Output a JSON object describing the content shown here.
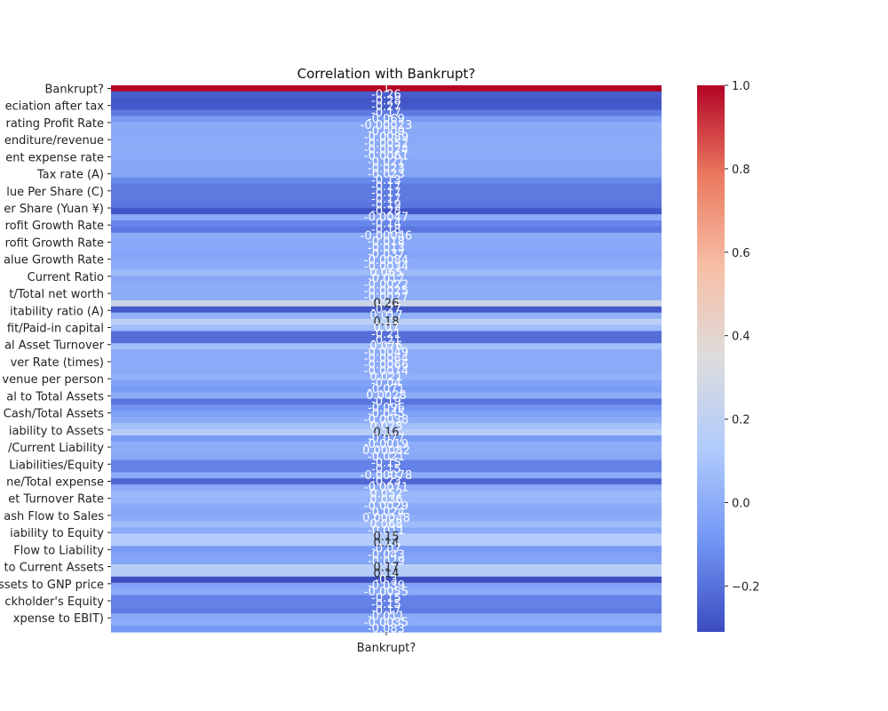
{
  "chart_data": {
    "type": "heatmap",
    "title": "Correlation with Bankrupt?",
    "x_categories": [
      "Bankrupt?"
    ],
    "y_tick_labels": [
      "Bankrupt?",
      "eciation after tax",
      "rating Profit Rate",
      "enditure/revenue",
      "ent expense rate",
      "Tax rate (A)",
      "lue Per Share (C)",
      "er Share (Yuan ¥)",
      "rofit Growth Rate",
      "rofit Growth Rate",
      "alue Growth Rate",
      "Current Ratio",
      "t/Total net worth",
      "itability ratio (A)",
      "fit/Paid-in capital",
      "al Asset Turnover",
      "ver Rate (times)",
      "venue per person",
      "al to Total Assets",
      "Cash/Total Assets",
      "iability to Assets",
      "/Current Liability",
      "Liabilities/Equity",
      "ne/Total expense",
      "et Turnover Rate",
      "ash Flow to Sales",
      "iability to Equity",
      "Flow to Liability",
      "to Current Assets",
      "ssets to GNP price",
      "ckholder's Equity",
      "xpense to EBIT)"
    ],
    "values": [
      1,
      -0.26,
      -0.28,
      -0.27,
      -0.17,
      -0.069,
      -0.00023,
      -0.009,
      -0.0089,
      -0.0052,
      -0.0024,
      -0.0061,
      -0.021,
      -0.023,
      -0.023,
      -0.13,
      -0.17,
      -0.17,
      -0.17,
      -0.19,
      -0.28,
      -0.0047,
      -0.14,
      -0.18,
      -0.00046,
      -0.018,
      -0.013,
      -0.037,
      -0.0084,
      -0.0034,
      0.065,
      -0.017,
      -0.0022,
      -0.0025,
      -0.0027,
      0.26,
      -0.27,
      0.017,
      0.18,
      0.07,
      -0.21,
      -0.21,
      0.076,
      -0.0049,
      -0.0064,
      -0.0066,
      -0.0074,
      0.021,
      -0.04,
      -0.071,
      0.0028,
      -0.19,
      -0.096,
      -0.045,
      -0.0038,
      0.078,
      0.16,
      -0.077,
      -0.0019,
      0.00082,
      -0.021,
      -0.15,
      -0.15,
      -0.00078,
      -0.23,
      -0.0071,
      0.052,
      0.036,
      -0.0029,
      -0.024,
      0.00048,
      0.068,
      -0.011,
      0.15,
      0.14,
      -0.07,
      -0.043,
      -0.029,
      0.17,
      0.14,
      -0.3,
      -0.039,
      -0.0055,
      -0.15,
      -0.15,
      -0.17,
      -0.011,
      -0.0035,
      -0.083
    ],
    "colorbar": {
      "min": -0.31,
      "max": 1.0,
      "tick_labels": [
        "1.0",
        "0.8",
        "0.6",
        "0.4",
        "0.2",
        "0.0",
        "−0.2"
      ],
      "tick_values": [
        1.0,
        0.8,
        0.6,
        0.4,
        0.2,
        0.0,
        -0.2
      ]
    },
    "colormap": "coolwarm",
    "colormap_colors": [
      "#3b4cc0",
      "#7396f5",
      "#b0cbfc",
      "#dddcdc",
      "#f6bfa6",
      "#ea7b60",
      "#b40426"
    ],
    "annotation_color_light": "#ffffff",
    "annotation_color_dark": "#262626"
  }
}
